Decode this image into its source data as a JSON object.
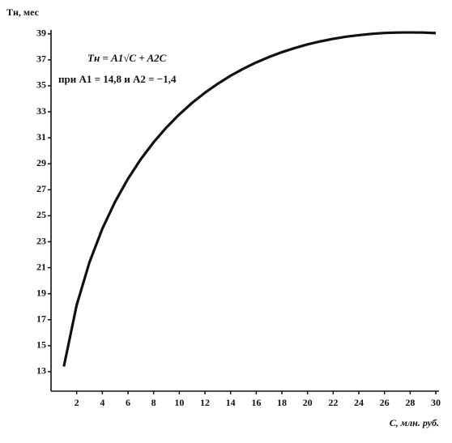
{
  "chart_data": {
    "type": "line",
    "x_label": "C, млн. руб.",
    "y_label": "Tн, мес",
    "annotations": [
      "Tн = A1√C + A2C",
      "при A1 = 14,8  и  A2 = −1,4"
    ],
    "x": [
      1,
      2,
      3,
      4,
      5,
      6,
      7,
      8,
      9,
      10,
      11,
      12,
      13,
      14,
      15,
      16,
      17,
      18,
      19,
      20,
      21,
      22,
      23,
      24,
      25,
      26,
      27,
      28,
      29,
      30
    ],
    "values": [
      13.4,
      18.13,
      21.43,
      24.0,
      26.09,
      27.85,
      29.36,
      30.66,
      31.8,
      32.8,
      33.69,
      34.47,
      35.16,
      35.78,
      36.32,
      36.8,
      37.22,
      37.59,
      37.91,
      38.19,
      38.42,
      38.62,
      38.78,
      38.9,
      39.0,
      39.07,
      39.1,
      39.11,
      39.1,
      39.06
    ],
    "color": "#111111",
    "xlim": [
      0,
      30
    ],
    "ylim": [
      11.5,
      39.3
    ],
    "xticks": [
      2,
      4,
      6,
      8,
      10,
      12,
      14,
      16,
      18,
      20,
      22,
      24,
      26,
      28,
      30
    ],
    "yticks": [
      13,
      15,
      17,
      19,
      21,
      23,
      25,
      27,
      29,
      31,
      33,
      35,
      37,
      39
    ],
    "grid": false
  }
}
